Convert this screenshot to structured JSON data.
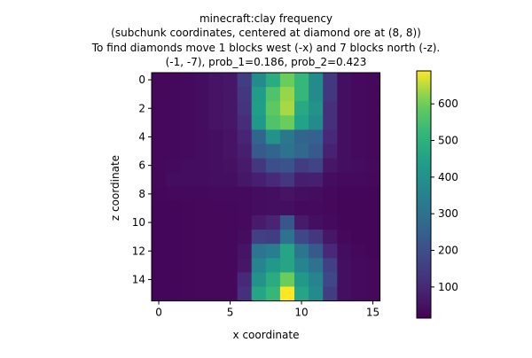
{
  "chart_data": {
    "type": "heatmap",
    "title_lines": [
      "minecraft:clay frequency",
      "(subchunk coordinates, centered at diamond ore at (8, 8))",
      "To find diamonds move 1 blocks west (-x) and 7 blocks north (-z).",
      "(-1, -7), prob_1=0.186, prob_2=0.423"
    ],
    "xlabel": "x coordinate",
    "ylabel": "z coordinate",
    "x_ticks": [
      0,
      5,
      10,
      15
    ],
    "y_ticks": [
      0,
      2,
      4,
      6,
      8,
      10,
      12,
      14
    ],
    "colorbar_ticks": [
      100,
      200,
      300,
      400,
      500,
      600
    ],
    "colormap": "viridis",
    "vmin": 15,
    "vmax": 690,
    "values": [
      [
        30,
        32,
        35,
        40,
        55,
        60,
        150,
        380,
        480,
        600,
        520,
        380,
        140,
        45,
        35,
        30
      ],
      [
        30,
        32,
        35,
        40,
        55,
        60,
        140,
        430,
        560,
        630,
        520,
        380,
        140,
        45,
        35,
        30
      ],
      [
        30,
        32,
        35,
        40,
        55,
        60,
        130,
        440,
        580,
        640,
        470,
        400,
        120,
        45,
        35,
        30
      ],
      [
        30,
        32,
        35,
        40,
        55,
        60,
        110,
        420,
        560,
        600,
        450,
        380,
        120,
        45,
        35,
        30
      ],
      [
        30,
        32,
        35,
        40,
        45,
        55,
        90,
        260,
        400,
        320,
        260,
        250,
        100,
        45,
        35,
        30
      ],
      [
        30,
        32,
        35,
        40,
        45,
        55,
        80,
        230,
        260,
        300,
        270,
        230,
        85,
        45,
        35,
        30
      ],
      [
        30,
        35,
        40,
        40,
        45,
        50,
        70,
        140,
        200,
        210,
        150,
        170,
        60,
        45,
        40,
        35
      ],
      [
        30,
        40,
        40,
        40,
        45,
        45,
        60,
        80,
        100,
        140,
        75,
        80,
        40,
        35,
        35,
        30
      ],
      [
        28,
        30,
        32,
        32,
        35,
        35,
        35,
        40,
        45,
        55,
        45,
        40,
        30,
        25,
        25,
        25
      ],
      [
        25,
        25,
        28,
        30,
        30,
        30,
        35,
        40,
        45,
        45,
        35,
        35,
        30,
        25,
        25,
        25
      ],
      [
        25,
        25,
        28,
        30,
        30,
        30,
        35,
        70,
        90,
        220,
        70,
        45,
        35,
        25,
        25,
        25
      ],
      [
        25,
        25,
        28,
        30,
        30,
        30,
        40,
        160,
        150,
        300,
        180,
        140,
        60,
        30,
        25,
        25
      ],
      [
        25,
        25,
        28,
        30,
        30,
        30,
        55,
        310,
        340,
        460,
        310,
        230,
        100,
        40,
        30,
        25
      ],
      [
        25,
        25,
        28,
        30,
        30,
        30,
        60,
        360,
        420,
        460,
        360,
        300,
        160,
        45,
        35,
        30
      ],
      [
        25,
        25,
        28,
        30,
        30,
        30,
        100,
        400,
        480,
        600,
        420,
        360,
        180,
        45,
        35,
        30
      ],
      [
        25,
        25,
        28,
        30,
        30,
        30,
        120,
        460,
        520,
        690,
        460,
        380,
        150,
        45,
        35,
        30
      ]
    ]
  }
}
